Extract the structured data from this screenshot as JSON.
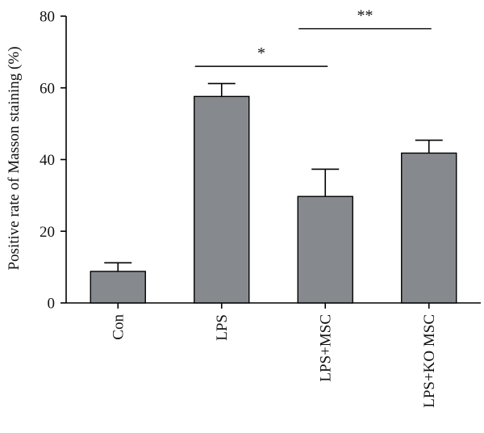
{
  "chart_data": {
    "type": "bar",
    "categories": [
      "Con",
      "LPS",
      "LPS+MSC",
      "LPS+KO MSC"
    ],
    "values": [
      8.8,
      57.6,
      29.7,
      41.8
    ],
    "errors": [
      2.4,
      3.6,
      7.6,
      3.6
    ],
    "title": "",
    "xlabel": "",
    "ylabel": "Positive rate of Masson staining (%)",
    "ylim": [
      0,
      80
    ],
    "yticks": [
      0,
      20,
      40,
      60,
      80
    ],
    "grid": false,
    "legend": "none",
    "bar_color": "#868a8f",
    "significance": [
      {
        "from": 1,
        "to": 2,
        "label": "*",
        "y": 66
      },
      {
        "from": 2,
        "to": 3,
        "label": "**",
        "y": 76.5
      }
    ]
  }
}
